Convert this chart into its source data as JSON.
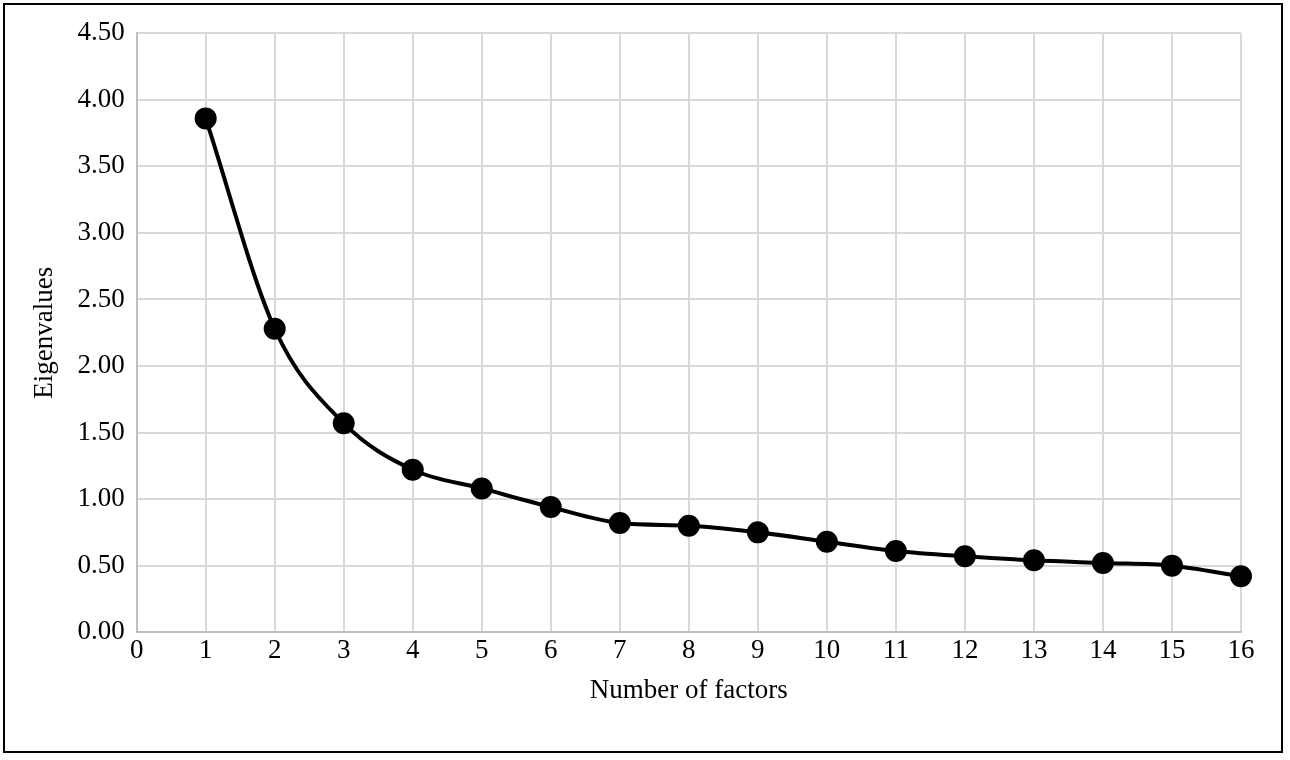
{
  "chart_data": {
    "type": "line",
    "xlabel": "Number of factors",
    "ylabel": "Eigenvalues",
    "x": [
      1,
      2,
      3,
      4,
      5,
      6,
      7,
      8,
      9,
      10,
      11,
      12,
      13,
      14,
      15,
      16
    ],
    "series": [
      {
        "color": "#000000",
        "values": [
          3.86,
          2.28,
          1.57,
          1.22,
          1.08,
          0.94,
          0.82,
          0.8,
          0.75,
          0.68,
          0.61,
          0.57,
          0.54,
          0.52,
          0.5,
          0.42
        ]
      }
    ],
    "xlim": [
      0,
      16
    ],
    "xticks": [
      0,
      1,
      2,
      3,
      4,
      5,
      6,
      7,
      8,
      9,
      10,
      11,
      12,
      13,
      14,
      15,
      16
    ],
    "ylim": [
      0,
      4.5
    ],
    "yticks": [
      {
        "value": 0,
        "label": "0.00"
      },
      {
        "value": 0.5,
        "label": "0.50"
      },
      {
        "value": 1,
        "label": "1.00"
      },
      {
        "value": 1.5,
        "label": "1.50"
      },
      {
        "value": 2,
        "label": "2.00"
      },
      {
        "value": 2.5,
        "label": "2.50"
      },
      {
        "value": 3,
        "label": "3.00"
      },
      {
        "value": 3.5,
        "label": "3.50"
      },
      {
        "value": 4,
        "label": "4.00"
      },
      {
        "value": 4.5,
        "label": "4.50"
      }
    ],
    "grid": true,
    "legend": false,
    "marker": "circle",
    "line_style": "solid"
  }
}
